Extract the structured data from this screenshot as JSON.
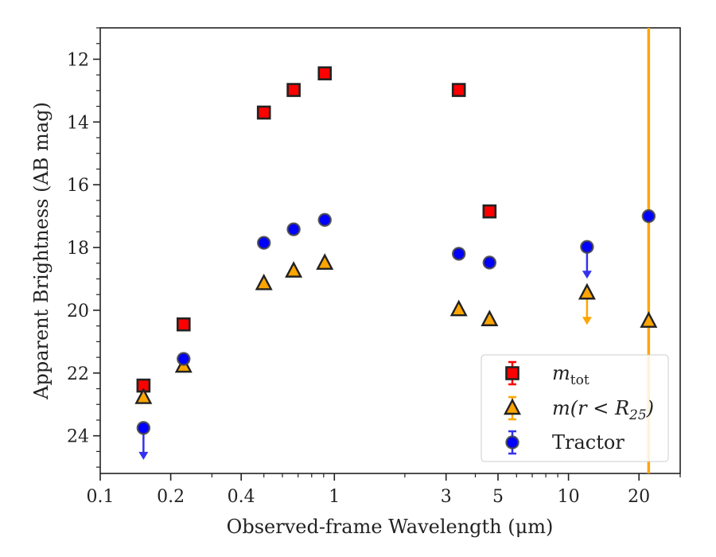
{
  "chart_data": {
    "type": "scatter",
    "title": "",
    "xlabel": "Observed-frame Wavelength (μm)",
    "ylabel": "Apparent Brightness (AB mag)",
    "xscale": "log",
    "xlim": [
      0.1,
      30
    ],
    "ylim": [
      25.2,
      11
    ],
    "y_inverted": true,
    "grid": false,
    "legend_position": "lower-right",
    "xticks": [
      {
        "value": 0.1,
        "label": "0.1"
      },
      {
        "value": 0.2,
        "label": "0.2"
      },
      {
        "value": 0.4,
        "label": "0.4"
      },
      {
        "value": 1,
        "label": "1"
      },
      {
        "value": 3,
        "label": "3"
      },
      {
        "value": 5,
        "label": "5"
      },
      {
        "value": 10,
        "label": "10"
      },
      {
        "value": 20,
        "label": "20"
      }
    ],
    "yticks": [
      {
        "value": 12,
        "label": "12"
      },
      {
        "value": 14,
        "label": "14"
      },
      {
        "value": 16,
        "label": "16"
      },
      {
        "value": 18,
        "label": "18"
      },
      {
        "value": 20,
        "label": "20"
      },
      {
        "value": 22,
        "label": "22"
      },
      {
        "value": 24,
        "label": "24"
      }
    ],
    "vertical_line": {
      "x": 22,
      "color": "#ffa500"
    },
    "series": [
      {
        "name": "m_tot",
        "legend_label": {
          "base": "m",
          "sub": "tot"
        },
        "marker": "square",
        "color": "#ff0000",
        "x": [
          0.153,
          0.227,
          0.5,
          0.67,
          0.91,
          3.4,
          4.6
        ],
        "y": [
          22.4,
          20.45,
          13.7,
          12.98,
          12.45,
          12.98,
          16.85
        ]
      },
      {
        "name": "m(r<R25)",
        "legend_label": {
          "base": "m(r < R",
          "sub": "25",
          "tail": ")"
        },
        "marker": "triangle",
        "color": "#ffa500",
        "x": [
          0.153,
          0.227,
          0.5,
          0.67,
          0.91,
          3.4,
          4.6,
          12,
          22
        ],
        "y": [
          22.78,
          21.78,
          19.15,
          18.75,
          18.5,
          19.98,
          20.3,
          19.45,
          20.35
        ],
        "upper_limit_x": [
          12
        ]
      },
      {
        "name": "Tractor",
        "legend_label": {
          "base": "Tractor"
        },
        "marker": "circle",
        "color": "#0000ff",
        "x": [
          0.153,
          0.227,
          0.5,
          0.67,
          0.91,
          3.4,
          4.6,
          12,
          22
        ],
        "y": [
          23.75,
          21.55,
          17.85,
          17.42,
          17.12,
          18.2,
          18.48,
          17.98,
          17.0
        ],
        "upper_limit_x": [
          0.153,
          12
        ]
      }
    ]
  }
}
